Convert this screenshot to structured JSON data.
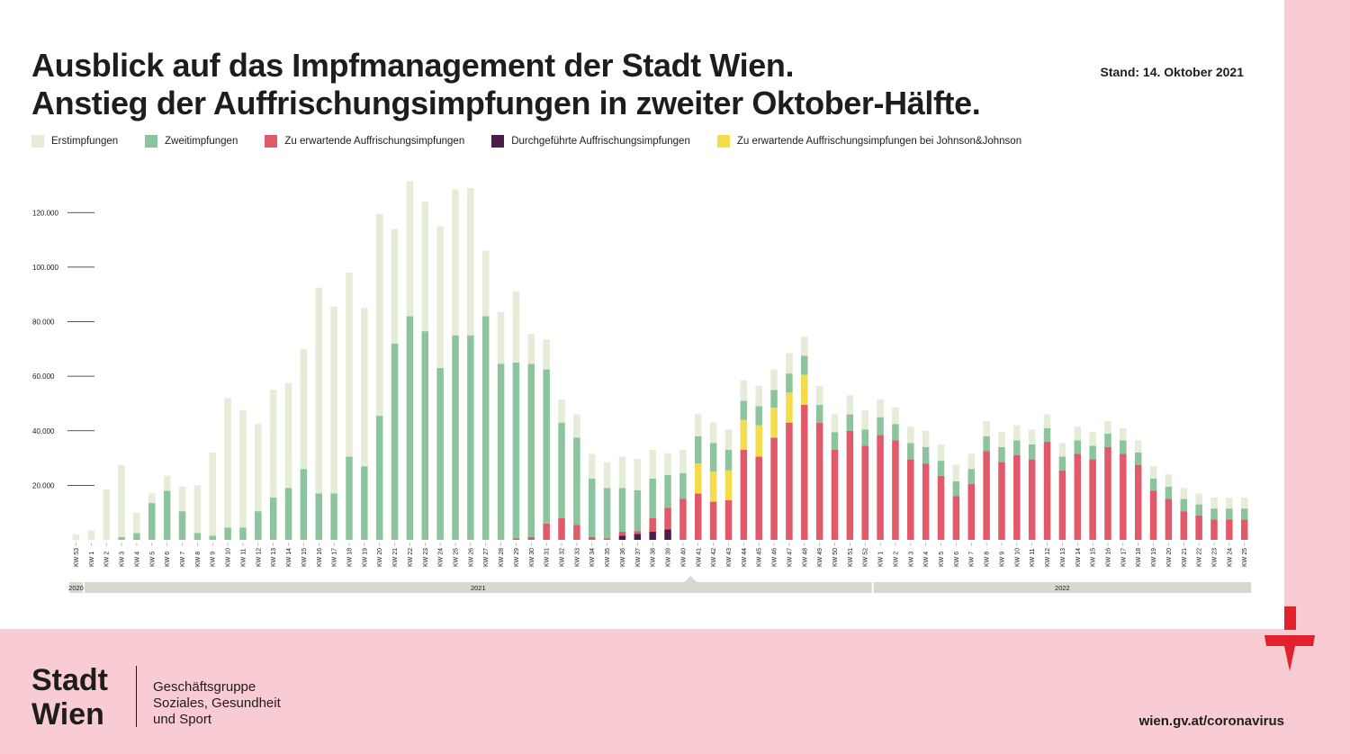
{
  "header": {
    "title_line1": "Ausblick auf das Impfmanagement der Stadt Wien.",
    "title_line2": "Anstieg der Auffrischungsimpfungen in zweiter Oktober-Hälfte.",
    "stand": "Stand: 14. Oktober 2021"
  },
  "legend": [
    {
      "label": "Erstimpfungen",
      "color": "#e5ecd8"
    },
    {
      "label": "Zweitimpfungen",
      "color": "#8cc49f"
    },
    {
      "label": "Zu erwartende Auffrischungsimpfungen",
      "color": "#e2596a"
    },
    {
      "label": "Durchgeführte Auffrischungsimpfungen",
      "color": "#4b1d4a"
    },
    {
      "label": "Zu erwartende Auffrischungsimpfungen bei Johnson&Johnson",
      "color": "#f4dc4a"
    }
  ],
  "chart_data": {
    "type": "bar",
    "stacked": true,
    "grid": false,
    "ylim": [
      0,
      130000
    ],
    "yticks": [
      "20.000",
      "40.000",
      "60.000",
      "80.000",
      "100.000",
      "120.000"
    ],
    "ytick_values": [
      20000,
      40000,
      60000,
      80000,
      100000,
      120000
    ],
    "years": [
      {
        "label": "2020",
        "from": 0,
        "to": 0
      },
      {
        "label": "2021",
        "from": 1,
        "to": 52
      },
      {
        "label": "2022",
        "from": 53,
        "to": 77
      }
    ],
    "categories": [
      "KW 53",
      "KW 1",
      "KW 2",
      "KW 3",
      "KW 4",
      "KW 5",
      "KW 6",
      "KW 7",
      "KW 8",
      "KW 9",
      "KW 10",
      "KW 11",
      "KW 12",
      "KW 13",
      "KW 14",
      "KW 15",
      "KW 16",
      "KW 17",
      "KW 18",
      "KW 19",
      "KW 20",
      "KW 21",
      "KW 22",
      "KW 23",
      "KW 24",
      "KW 25",
      "KW 26",
      "KW 27",
      "KW 28",
      "KW 29",
      "KW 30",
      "KW 31",
      "KW 32",
      "KW 33",
      "KW 34",
      "KW 35",
      "KW 36",
      "KW 37",
      "KW 38",
      "KW 39",
      "KW 40",
      "KW 41",
      "KW 42",
      "KW 43",
      "KW 44",
      "KW 45",
      "KW 46",
      "KW 47",
      "KW 48",
      "KW 49",
      "KW 50",
      "KW 51",
      "KW 52",
      "KW 1",
      "KW 2",
      "KW 3",
      "KW 4",
      "KW 5",
      "KW 6",
      "KW 7",
      "KW 8",
      "KW 9",
      "KW 10",
      "KW 11",
      "KW 12",
      "KW 13",
      "KW 14",
      "KW 15",
      "KW 16",
      "KW 17",
      "KW 18",
      "KW 19",
      "KW 20",
      "KW 21",
      "KW 22",
      "KW 23",
      "KW 24",
      "KW 25"
    ],
    "series": [
      {
        "name": "Durchgeführte Auffrischungsimpfungen",
        "color": "#4b1d4a",
        "values": [
          0,
          0,
          0,
          0,
          0,
          0,
          0,
          0,
          0,
          0,
          0,
          0,
          0,
          0,
          0,
          0,
          0,
          0,
          0,
          0,
          0,
          0,
          0,
          0,
          0,
          0,
          0,
          0,
          0,
          0,
          0,
          0,
          0,
          0,
          0,
          0,
          1500,
          2200,
          3000,
          3800,
          0,
          0,
          0,
          0,
          0,
          0,
          0,
          0,
          0,
          0,
          0,
          0,
          0,
          0,
          0,
          0,
          0,
          0,
          0,
          0,
          0,
          0,
          0,
          0,
          0,
          0,
          0,
          0,
          0,
          0,
          0,
          0,
          0,
          0,
          0,
          0,
          0,
          0
        ]
      },
      {
        "name": "Zu erwartende Auffrischungsimpfungen",
        "color": "#e2596a",
        "values": [
          0,
          0,
          0,
          0,
          0,
          0,
          0,
          0,
          0,
          0,
          0,
          0,
          0,
          0,
          0,
          0,
          0,
          0,
          0,
          0,
          0,
          0,
          0,
          0,
          0,
          0,
          0,
          0,
          0,
          500,
          1000,
          6000,
          8000,
          5500,
          1000,
          500,
          1500,
          1000,
          5000,
          8000,
          15000,
          17000,
          14000,
          14500,
          33000,
          30500,
          37500,
          43000,
          49500,
          43000,
          33000,
          40000,
          34500,
          38500,
          36500,
          29500,
          28000,
          23500,
          16000,
          20500,
          32500,
          28500,
          31000,
          29500,
          36000,
          25500,
          31500,
          29500,
          34000,
          31500,
          27500,
          18000,
          15000,
          10500,
          9000,
          7500,
          7500,
          7500
        ]
      },
      {
        "name": "Zu erwartende Auffrischungsimpfungen bei Johnson&Johnson",
        "color": "#f4dc4a",
        "values": [
          0,
          0,
          0,
          0,
          0,
          0,
          0,
          0,
          0,
          0,
          0,
          0,
          0,
          0,
          0,
          0,
          0,
          0,
          0,
          0,
          0,
          0,
          0,
          0,
          0,
          0,
          0,
          0,
          0,
          0,
          0,
          0,
          0,
          0,
          0,
          0,
          0,
          0,
          0,
          0,
          0,
          11000,
          11000,
          11000,
          11000,
          11500,
          11000,
          11000,
          11000,
          0,
          0,
          0,
          0,
          0,
          0,
          0,
          0,
          0,
          0,
          0,
          0,
          0,
          0,
          0,
          0,
          0,
          0,
          0,
          0,
          0,
          0,
          0,
          0,
          0,
          0,
          0,
          0,
          0
        ]
      },
      {
        "name": "Zweitimpfungen",
        "color": "#8cc49f",
        "values": [
          0,
          0,
          0,
          1000,
          2500,
          13500,
          18000,
          10500,
          2500,
          1500,
          4500,
          4500,
          10500,
          15500,
          19000,
          26000,
          17000,
          17000,
          30500,
          27000,
          45500,
          72000,
          82000,
          76500,
          63000,
          75000,
          75000,
          82000,
          64500,
          64500,
          63500,
          56500,
          35000,
          32000,
          21500,
          18500,
          16000,
          15000,
          14500,
          12000,
          9500,
          10000,
          10500,
          7500,
          7000,
          7000,
          6500,
          7000,
          7000,
          6500,
          6500,
          6000,
          6000,
          6500,
          6000,
          6000,
          6000,
          5500,
          5500,
          5500,
          5500,
          5500,
          5500,
          5500,
          5000,
          5000,
          5000,
          5000,
          5000,
          5000,
          4500,
          4500,
          4500,
          4500,
          4000,
          4000,
          4000,
          4000
        ]
      },
      {
        "name": "Erstimpfungen",
        "color": "#e5ecd8",
        "values": [
          2000,
          3500,
          18500,
          26500,
          7500,
          3500,
          5500,
          9000,
          17500,
          30500,
          47500,
          43000,
          32000,
          39500,
          38500,
          44000,
          75500,
          68500,
          67500,
          58000,
          74000,
          42000,
          49500,
          47500,
          52000,
          53500,
          54000,
          24000,
          19000,
          26000,
          11000,
          11000,
          8500,
          8500,
          9000,
          9500,
          11500,
          11500,
          10500,
          8000,
          8500,
          8000,
          7500,
          7500,
          7500,
          7500,
          7500,
          7500,
          7000,
          7000,
          6500,
          7000,
          7000,
          6500,
          6000,
          6000,
          6000,
          6000,
          6000,
          5500,
          5500,
          5500,
          5500,
          5500,
          5000,
          5000,
          5000,
          5000,
          4500,
          4500,
          4500,
          4500,
          4500,
          4000,
          4000,
          4000,
          4000,
          4000
        ]
      }
    ]
  },
  "footer": {
    "logo_line1": "Stadt",
    "logo_line2": "Wien",
    "dept_line1": "Geschäftsgruppe",
    "dept_line2": "Soziales, Gesundheit",
    "dept_line3": "und Sport",
    "url": "wien.gv.at/coronavirus"
  },
  "colors": {
    "brand_pink": "#f9ccd3",
    "brand_red": "#e3212d",
    "text": "#1d1d1b",
    "year_bar": "#d9d7d0"
  }
}
